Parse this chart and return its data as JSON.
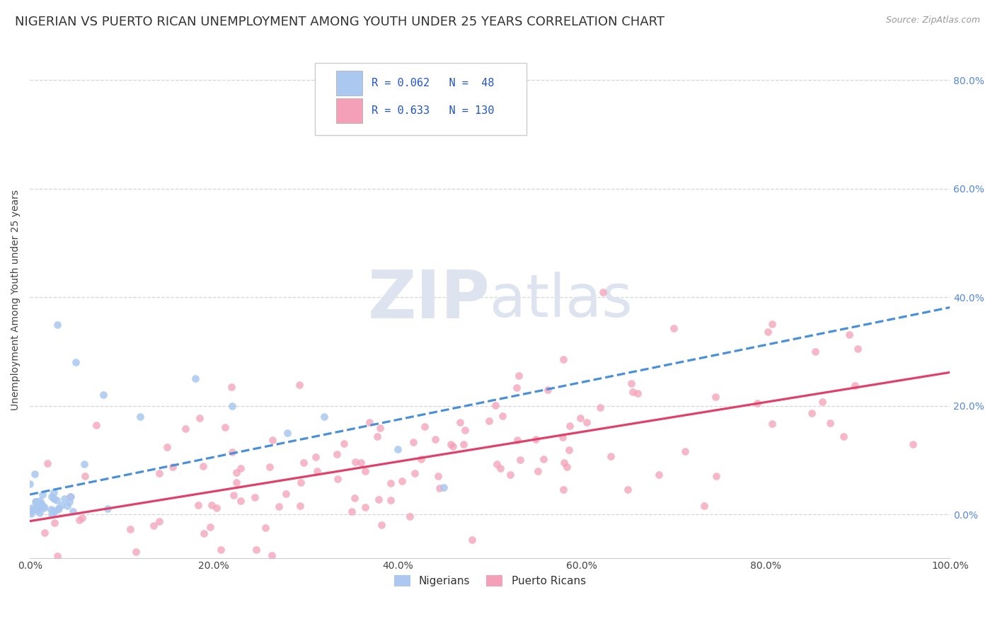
{
  "title": "NIGERIAN VS PUERTO RICAN UNEMPLOYMENT AMONG YOUTH UNDER 25 YEARS CORRELATION CHART",
  "source": "Source: ZipAtlas.com",
  "ylabel": "Unemployment Among Youth under 25 years",
  "legend_label1": "Nigerians",
  "legend_label2": "Puerto Ricans",
  "r1": 0.062,
  "n1": 48,
  "r2": 0.633,
  "n2": 130,
  "color1": "#aac8f0",
  "color2": "#f4a0b8",
  "line_color1": "#4a90d9",
  "line_color2": "#e0406a",
  "watermark_color": "#dde4f0",
  "bg_color": "#ffffff",
  "grid_color": "#cccccc",
  "title_fontsize": 13,
  "tick_fontsize": 10,
  "tick_color_right": "#5588dd",
  "tick_color_bottom": "#444444",
  "source_color": "#999999",
  "ylabel_color": "#444444"
}
